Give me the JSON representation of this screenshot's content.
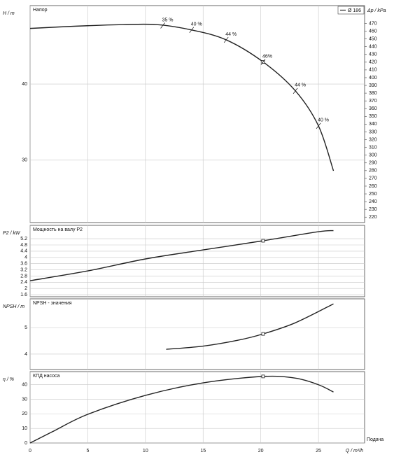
{
  "chart_data": [
    {
      "type": "line",
      "title": "Напор",
      "ylabel": "H / m",
      "y2label": "Δp / kPa",
      "legend": "Ø 186",
      "color": "#222222",
      "x": [
        0,
        4,
        8,
        11,
        14,
        17,
        20.2,
        23,
        25,
        26.3
      ],
      "values": [
        47.3,
        47.6,
        47.8,
        47.8,
        47.1,
        45.8,
        42.9,
        39.1,
        34.5,
        28.6
      ],
      "marker_index": 6,
      "ylim": [
        21.8,
        50.3
      ],
      "yticks": [
        30,
        40
      ],
      "y2lim": [
        213,
        493
      ],
      "y2ticks": [
        220,
        230,
        240,
        250,
        260,
        270,
        280,
        290,
        300,
        310,
        320,
        330,
        340,
        350,
        360,
        370,
        380,
        390,
        400,
        410,
        420,
        430,
        440,
        450,
        460,
        470
      ],
      "efficiency_labels": [
        {
          "x": 11.5,
          "label": "35 %"
        },
        {
          "x": 14,
          "label": "40 %"
        },
        {
          "x": 17,
          "label": "44 %"
        },
        {
          "x": 20.2,
          "label": "46%"
        },
        {
          "x": 23,
          "label": "44 %"
        },
        {
          "x": 25,
          "label": "40 %"
        }
      ]
    },
    {
      "type": "line",
      "title": "Мощность на валу P2",
      "ylabel": "P2 / kW",
      "color": "#222222",
      "x": [
        0,
        5,
        10,
        15,
        20.2,
        25,
        26.3
      ],
      "values": [
        2.5,
        3.13,
        3.9,
        4.48,
        5.07,
        5.65,
        5.72
      ],
      "marker_index": 4,
      "ylim": [
        1.47,
        6.06
      ],
      "yticks": [
        1.6,
        2,
        2.4,
        2.8,
        3.2,
        3.6,
        4,
        4.4,
        4.8,
        5.2
      ]
    },
    {
      "type": "line",
      "title": "NPSH - значения",
      "ylabel": "NPSH / m",
      "color": "#222222",
      "x": [
        11.8,
        15,
        18,
        20.2,
        23,
        26.3
      ],
      "values": [
        4.18,
        4.3,
        4.52,
        4.76,
        5.18,
        5.89
      ],
      "marker_index": 3,
      "ylim": [
        3.42,
        6.08
      ],
      "yticks": [
        4,
        5
      ]
    },
    {
      "type": "line",
      "title": "КПД насоса",
      "ylabel": "η / %",
      "color": "#222222",
      "x": [
        0,
        2,
        5,
        10,
        15,
        20.2,
        23,
        25,
        26.3
      ],
      "values": [
        0,
        8,
        19.7,
        32.7,
        41.3,
        45.7,
        44.5,
        40,
        35
      ],
      "marker_index": 5,
      "ylim": [
        0,
        49
      ],
      "yticks": [
        0,
        10,
        20,
        30,
        40
      ],
      "xlim": [
        0,
        29
      ],
      "xticks": [
        0,
        5,
        10,
        15,
        20,
        25
      ],
      "xlabel": "Q / m³/h",
      "x_caption": "Подача"
    }
  ]
}
